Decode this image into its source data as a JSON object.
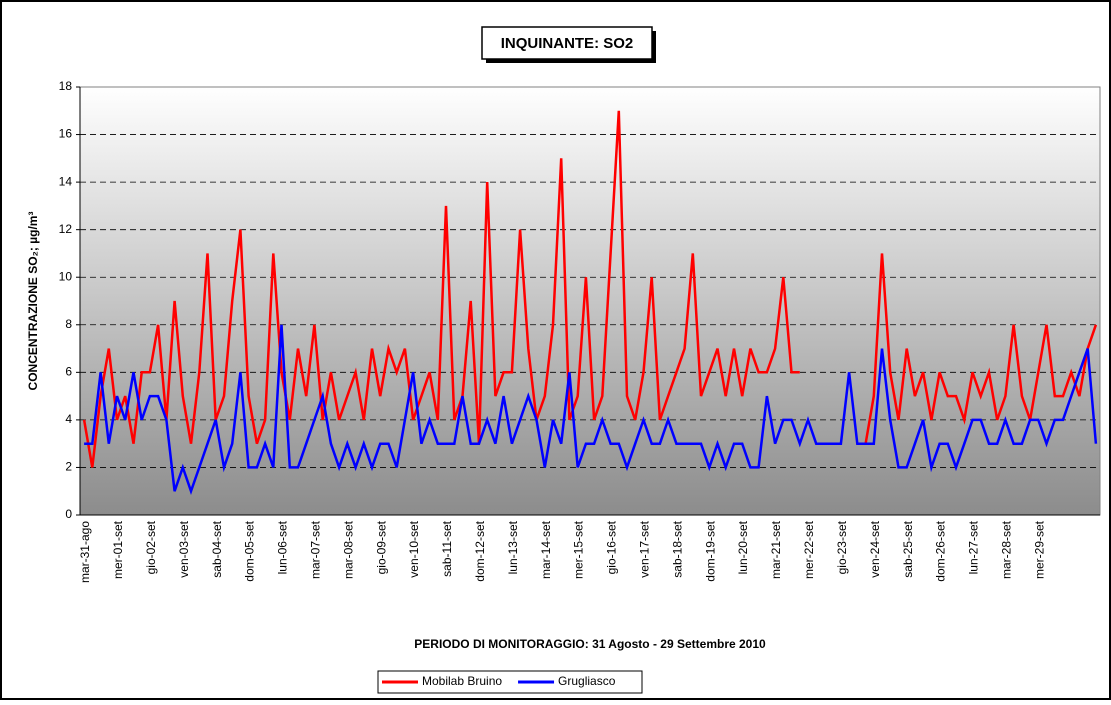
{
  "chart_data": {
    "type": "line",
    "title": "INQUINANTE: SO2",
    "y_label": "CONCENTRAZIONE SO₂;  µg/m³",
    "x_label": "PERIODO DI MONITORAGGIO: 31 Agosto - 29 Settembre 2010",
    "categories": [
      "mar-31-ago",
      null,
      null,
      null,
      "mer-01-set",
      null,
      null,
      null,
      "gio-02-set",
      null,
      null,
      null,
      "ven-03-set",
      null,
      null,
      null,
      "sab-04-set",
      null,
      null,
      null,
      "dom-05-set",
      null,
      null,
      null,
      "lun-06-set",
      null,
      null,
      null,
      "mar-07-set",
      null,
      null,
      null,
      "mar-08-set",
      null,
      null,
      null,
      "gio-09-set",
      null,
      null,
      null,
      "ven-10-set",
      null,
      null,
      null,
      "sab-11-set",
      null,
      null,
      null,
      "dom-12-set",
      null,
      null,
      null,
      "lun-13-set",
      null,
      null,
      null,
      "mar-14-set",
      null,
      null,
      null,
      "mer-15-set",
      null,
      null,
      null,
      "gio-16-set",
      null,
      null,
      null,
      "ven-17-set",
      null,
      null,
      null,
      "sab-18-set",
      null,
      null,
      null,
      "dom-19-set",
      null,
      null,
      null,
      "lun-20-set",
      null,
      null,
      null,
      "mar-21-set",
      null,
      null,
      null,
      "mer-22-set",
      null,
      null,
      null,
      "gio-23-set",
      null,
      null,
      null,
      "ven-24-set",
      null,
      null,
      null,
      "sab-25-set",
      null,
      null,
      null,
      "dom-26-set",
      null,
      null,
      null,
      "lun-27-set",
      null,
      null,
      null,
      "mar-28-set",
      null,
      null,
      null,
      "mer-29-set",
      null,
      null,
      null,
      null,
      null,
      null,
      null
    ],
    "series": [
      {
        "name": "Mobilab Bruino",
        "color": "#ff0000",
        "values": [
          4,
          2,
          5,
          7,
          4,
          5,
          3,
          6,
          6,
          8,
          4,
          9,
          5,
          3,
          6,
          11,
          4,
          5,
          9,
          12,
          5,
          3,
          4,
          11,
          6,
          4,
          7,
          5,
          8,
          4,
          6,
          4,
          5,
          6,
          4,
          7,
          5,
          7,
          6,
          7,
          4,
          5,
          6,
          4,
          13,
          4,
          5,
          9,
          3,
          14,
          5,
          6,
          6,
          12,
          7,
          4,
          5,
          8,
          15,
          4,
          5,
          10,
          4,
          5,
          11,
          17,
          5,
          4,
          6,
          10,
          4,
          5,
          6,
          7,
          11,
          5,
          6,
          7,
          5,
          7,
          5,
          7,
          6,
          6,
          7,
          10,
          6,
          6,
          null,
          null,
          null,
          null,
          null,
          null,
          null,
          3,
          5,
          11,
          6,
          4,
          7,
          5,
          6,
          4,
          6,
          5,
          5,
          4,
          6,
          5,
          6,
          4,
          5,
          8,
          5,
          4,
          6,
          8,
          5,
          5,
          6,
          5,
          7,
          8
        ]
      },
      {
        "name": "Grugliasco",
        "color": "#0000ff",
        "values": [
          3,
          3,
          6,
          3,
          5,
          4,
          6,
          4,
          5,
          5,
          4,
          1,
          2,
          1,
          2,
          3,
          4,
          2,
          3,
          6,
          2,
          2,
          3,
          2,
          8,
          2,
          2,
          3,
          4,
          5,
          3,
          2,
          3,
          2,
          3,
          2,
          3,
          3,
          2,
          4,
          6,
          3,
          4,
          3,
          3,
          3,
          5,
          3,
          3,
          4,
          3,
          5,
          3,
          4,
          5,
          4,
          2,
          4,
          3,
          6,
          2,
          3,
          3,
          4,
          3,
          3,
          2,
          3,
          4,
          3,
          3,
          4,
          3,
          3,
          3,
          3,
          2,
          3,
          2,
          3,
          3,
          2,
          2,
          5,
          3,
          4,
          4,
          3,
          4,
          3,
          3,
          3,
          3,
          6,
          3,
          3,
          3,
          7,
          4,
          2,
          2,
          3,
          4,
          2,
          3,
          3,
          2,
          3,
          4,
          4,
          3,
          3,
          4,
          3,
          3,
          4,
          4,
          3,
          4,
          4,
          5,
          6,
          7,
          3
        ]
      }
    ],
    "ylim": [
      0,
      18
    ],
    "yticks": [
      0,
      2,
      4,
      6,
      8,
      10,
      12,
      14,
      16,
      18
    ],
    "grid": true,
    "legend": "bottom"
  }
}
